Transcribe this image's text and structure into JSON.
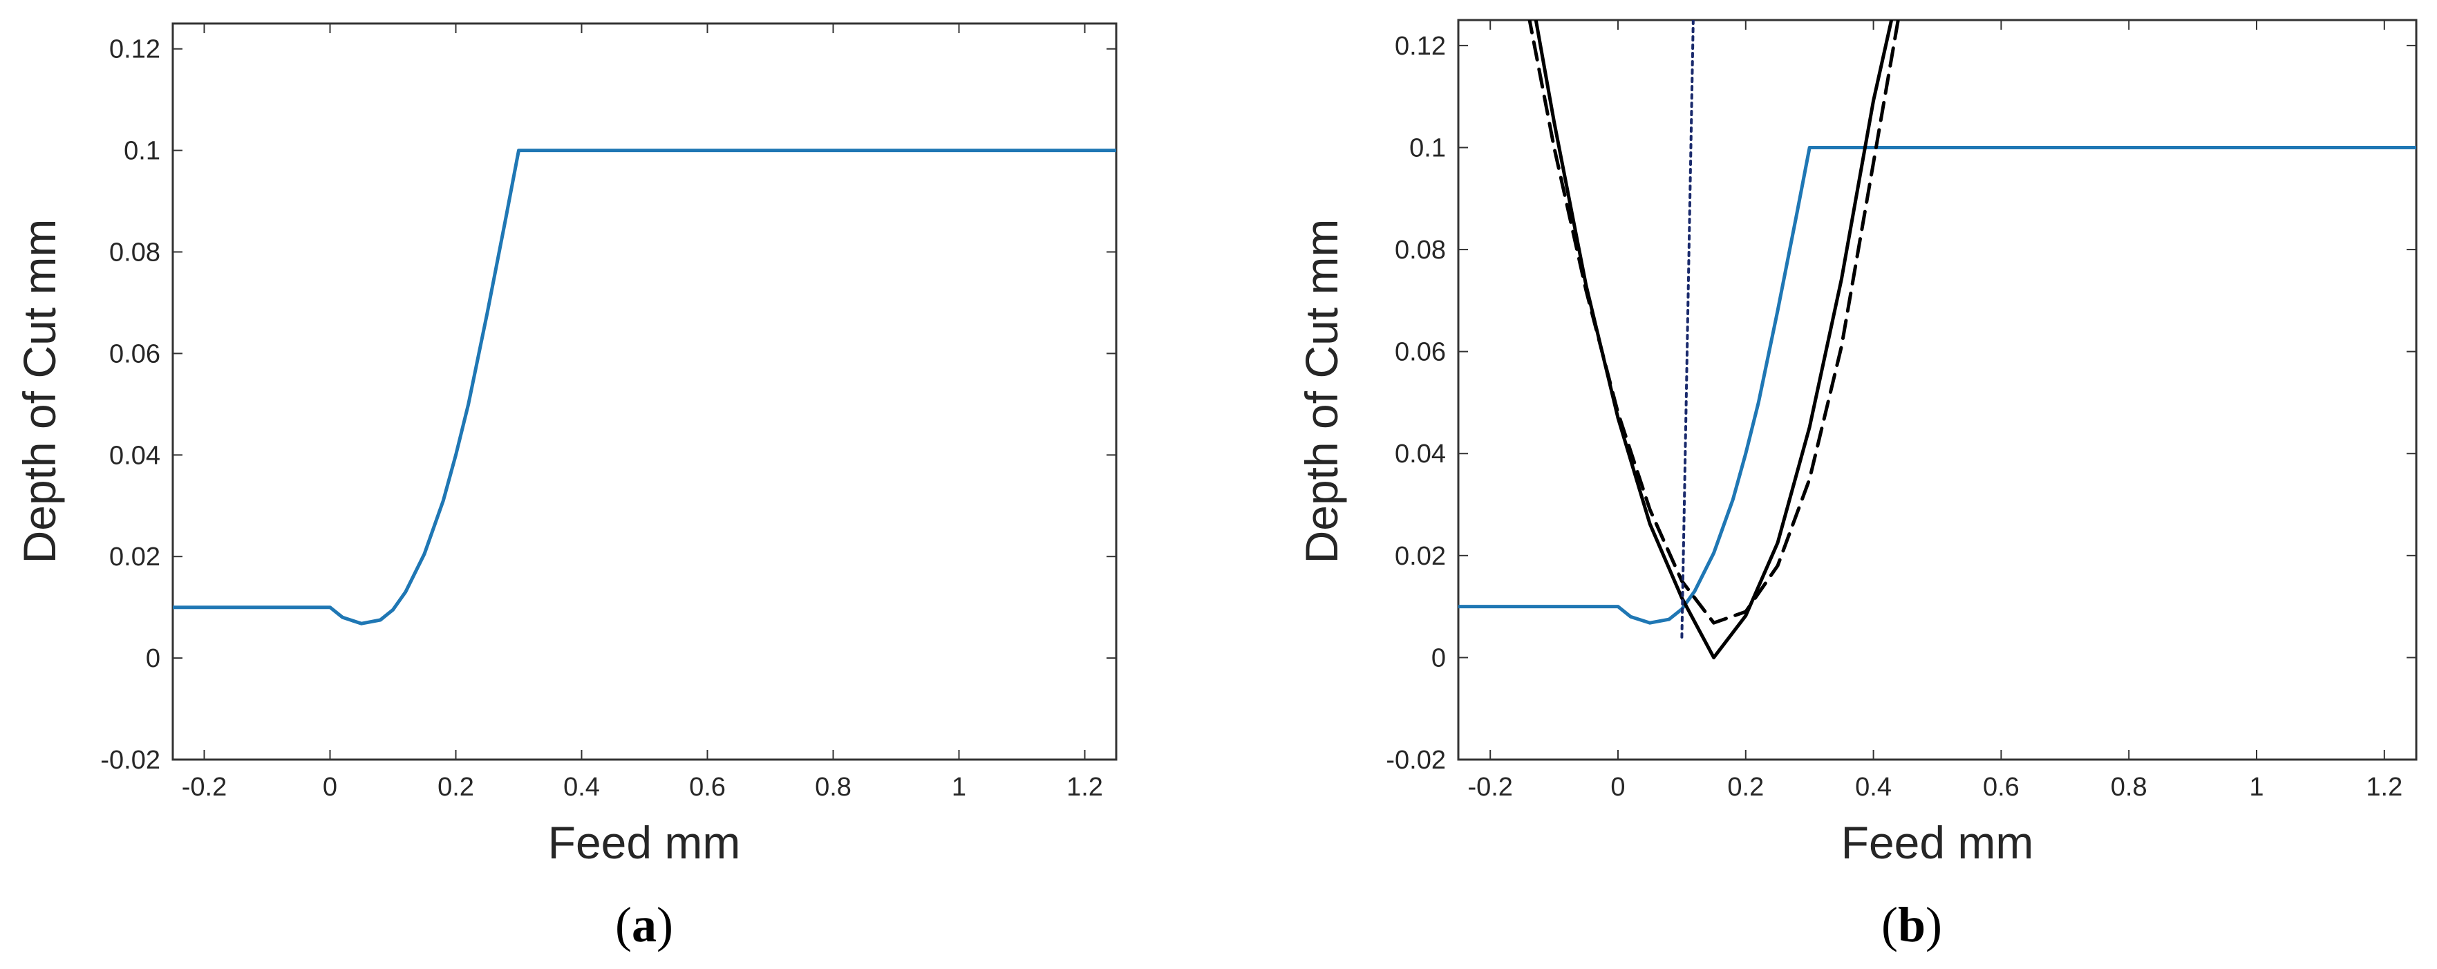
{
  "chart_data": [
    {
      "type": "line",
      "panel_label": "a",
      "xlabel": "Feed mm",
      "ylabel": "Depth of Cut mm",
      "xlim": [
        -0.25,
        1.25
      ],
      "ylim": [
        -0.02,
        0.125
      ],
      "xticks": [
        "-0.2",
        "0",
        "0.2",
        "0.4",
        "0.6",
        "0.8",
        "1",
        "1.2"
      ],
      "yticks": [
        "-0.02",
        "0",
        "0.02",
        "0.04",
        "0.06",
        "0.08",
        "0.1",
        "0.12"
      ],
      "grid": false,
      "series": [
        {
          "style": "solid",
          "color": "#1f77b4",
          "x": [
            -0.25,
            0,
            0.02,
            0.05,
            0.08,
            0.1,
            0.12,
            0.15,
            0.18,
            0.2,
            0.22,
            0.25,
            0.28,
            0.3,
            0.305,
            1.25
          ],
          "y": [
            0.01,
            0.01,
            0.008,
            0.0068,
            0.0075,
            0.0095,
            0.013,
            0.0205,
            0.031,
            0.04,
            0.05,
            0.068,
            0.087,
            0.1,
            0.1,
            0.1
          ]
        }
      ]
    },
    {
      "type": "line",
      "panel_label": "b",
      "xlabel": "Feed mm",
      "ylabel": "Depth of Cut mm",
      "xlim": [
        -0.25,
        1.25
      ],
      "ylim": [
        -0.02,
        0.125
      ],
      "xticks": [
        "-0.2",
        "0",
        "0.2",
        "0.4",
        "0.6",
        "0.8",
        "1",
        "1.2"
      ],
      "yticks": [
        "-0.02",
        "0",
        "0.02",
        "0.04",
        "0.06",
        "0.08",
        "0.1",
        "0.12"
      ],
      "grid": false,
      "series": [
        {
          "style": "solid",
          "color": "#1f77b4",
          "x": [
            -0.25,
            0,
            0.02,
            0.05,
            0.08,
            0.1,
            0.12,
            0.15,
            0.18,
            0.2,
            0.22,
            0.25,
            0.28,
            0.3,
            0.305,
            1.25
          ],
          "y": [
            0.01,
            0.01,
            0.008,
            0.0068,
            0.0075,
            0.0095,
            0.013,
            0.0205,
            0.031,
            0.04,
            0.05,
            0.068,
            0.087,
            0.1,
            0.1,
            0.1
          ]
        },
        {
          "style": "dashed",
          "color": "#000000",
          "x": [
            -0.14,
            -0.1,
            -0.05,
            0,
            0.05,
            0.1,
            0.15,
            0.2,
            0.25,
            0.3,
            0.35,
            0.4,
            0.44
          ],
          "y": [
            0.126,
            0.1,
            0.072,
            0.048,
            0.029,
            0.015,
            0.0068,
            0.009,
            0.018,
            0.035,
            0.061,
            0.097,
            0.126
          ]
        },
        {
          "style": "solid",
          "color": "#000000",
          "x": [
            -0.13,
            -0.1,
            -0.05,
            0,
            0.05,
            0.1,
            0.15,
            0.2,
            0.25,
            0.3,
            0.35,
            0.4,
            0.43
          ],
          "y": [
            0.126,
            0.105,
            0.073,
            0.047,
            0.0262,
            0.0117,
            0.0,
            0.0082,
            0.0225,
            0.0452,
            0.0742,
            0.1092,
            0.126
          ]
        },
        {
          "style": "dotted",
          "color": "#1a2a6c",
          "x": [
            0.1,
            0.118
          ],
          "y": [
            0.004,
            0.126
          ]
        }
      ]
    }
  ]
}
